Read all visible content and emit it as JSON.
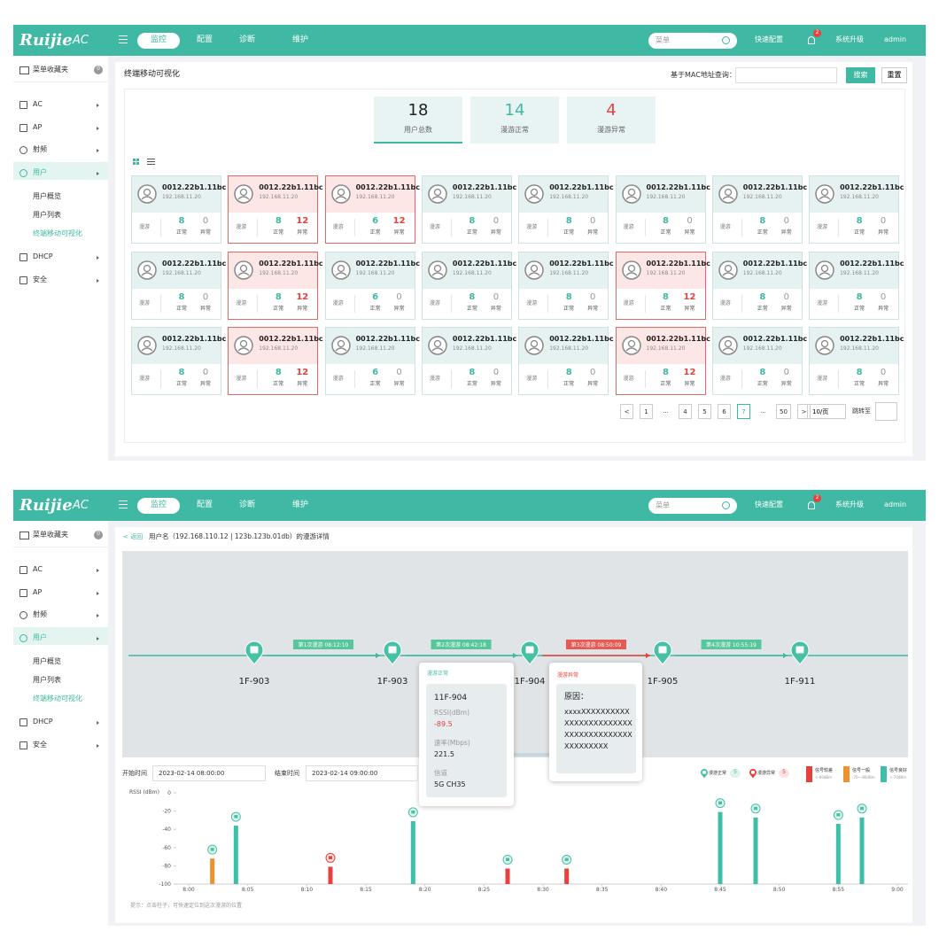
{
  "screen1": {
    "header": {
      "logo": "Ruijie",
      "logo_sub": "AC",
      "nav": [
        "监控",
        "配置",
        "诊断",
        "维护"
      ],
      "search": "菜单",
      "quick_config": "快速配置",
      "badge": 2,
      "upgrade": "系统升级",
      "user": "admin"
    },
    "sidebar": {
      "favorites": "菜单收藏夹",
      "favorites_count": 0,
      "items": [
        "AC",
        "AP",
        "射频",
        "用户",
        "用户概览",
        "用户列表",
        "终端移动可视化",
        "DHCP",
        "安全"
      ]
    },
    "content": {
      "title": "终端移动可视化",
      "query_label": "基于MAC地址查询：",
      "search_button": "搜索",
      "reset_button": "重置",
      "stats": [
        {
          "value": 18,
          "label": "用户总数"
        },
        {
          "value": 14,
          "label": "漫游正常"
        },
        {
          "value": 4,
          "label": "漫游异常"
        }
      ],
      "cards": [
        {
          "mac": "0012.22b1.11bc",
          "ip": "192.168.11.20",
          "type": "漫游",
          "normal": 8,
          "normal_label": "正常",
          "abnormal": 0,
          "abnormal_label": "异常"
        },
        {
          "mac": "0012.22b1.11bc",
          "ip": "192.168.11.20",
          "type": "漫游",
          "normal": 8,
          "normal_label": "正常",
          "abnormal": 12,
          "abnormal_label": "异常"
        },
        {
          "mac": "0012.22b1.11bc",
          "ip": "192.168.11.20",
          "type": "漫游",
          "normal": 6,
          "normal_label": "正常",
          "abnormal": 12,
          "abnormal_label": "异常"
        },
        {
          "mac": "0012.22b1.11bc",
          "ip": "192.168.11.20",
          "type": "漫游",
          "normal": 8,
          "normal_label": "正常",
          "abnormal": 0,
          "abnormal_label": "异常"
        },
        {
          "mac": "0012.22b1.11bc",
          "ip": "192.168.11.20",
          "type": "漫游",
          "normal": 8,
          "normal_label": "正常",
          "abnormal": 0,
          "abnormal_label": "异常"
        },
        {
          "mac": "0012.22b1.11bc",
          "ip": "192.168.11.20",
          "type": "漫游",
          "normal": 8,
          "normal_label": "正常",
          "abnormal": 0,
          "abnormal_label": "异常"
        },
        {
          "mac": "0012.22b1.11bc",
          "ip": "192.168.11.20",
          "type": "漫游",
          "normal": 8,
          "normal_label": "正常",
          "abnormal": 0,
          "abnormal_label": "异常"
        },
        {
          "mac": "0012.22b1.11bc",
          "ip": "192.168.11.20",
          "type": "漫游",
          "normal": 8,
          "normal_label": "正常",
          "abnormal": 0,
          "abnormal_label": "异常"
        },
        {
          "mac": "0012.22b1.11bc",
          "ip": "192.168.11.20",
          "type": "漫游",
          "normal": 8,
          "normal_label": "正常",
          "abnormal": 0,
          "abnormal_label": "异常"
        },
        {
          "mac": "0012.22b1.11bc",
          "ip": "192.168.11.20",
          "type": "漫游",
          "normal": 8,
          "normal_label": "正常",
          "abnormal": 12,
          "abnormal_label": "异常"
        },
        {
          "mac": "0012.22b1.11bc",
          "ip": "192.168.11.20",
          "type": "漫游",
          "normal": 6,
          "normal_label": "正常",
          "abnormal": 0,
          "abnormal_label": "异常"
        },
        {
          "mac": "0012.22b1.11bc",
          "ip": "192.168.11.20",
          "type": "漫游",
          "normal": 8,
          "normal_label": "正常",
          "abnormal": 0,
          "abnormal_label": "异常"
        },
        {
          "mac": "0012.22b1.11bc",
          "ip": "192.168.11.20",
          "type": "漫游",
          "normal": 8,
          "normal_label": "正常",
          "abnormal": 0,
          "abnormal_label": "异常"
        },
        {
          "mac": "0012.22b1.11bc",
          "ip": "192.168.11.20",
          "type": "漫游",
          "normal": 8,
          "normal_label": "正常",
          "abnormal": 12,
          "abnormal_label": "异常"
        },
        {
          "mac": "0012.22b1.11bc",
          "ip": "192.168.11.20",
          "type": "漫游",
          "normal": 8,
          "normal_label": "正常",
          "abnormal": 0,
          "abnormal_label": "异常"
        },
        {
          "mac": "0012.22b1.11bc",
          "ip": "192.168.11.20",
          "type": "漫游",
          "normal": 8,
          "normal_label": "正常",
          "abnormal": 0,
          "abnormal_label": "异常"
        },
        {
          "mac": "0012.22b1.11bc",
          "ip": "192.168.11.20",
          "type": "漫游",
          "normal": 8,
          "normal_label": "正常",
          "abnormal": 0,
          "abnormal_label": "异常"
        },
        {
          "mac": "0012.22b1.11bc",
          "ip": "192.168.11.20",
          "type": "漫游",
          "normal": 8,
          "normal_label": "正常",
          "abnormal": 12,
          "abnormal_label": "异常"
        },
        {
          "mac": "0012.22b1.11bc",
          "ip": "192.168.11.20",
          "type": "漫游",
          "normal": 6,
          "normal_label": "正常",
          "abnormal": 0,
          "abnormal_label": "异常"
        },
        {
          "mac": "0012.22b1.11bc",
          "ip": "192.168.11.20",
          "type": "漫游",
          "normal": 8,
          "normal_label": "正常",
          "abnormal": 0,
          "abnormal_label": "异常"
        },
        {
          "mac": "0012.22b1.11bc",
          "ip": "192.168.11.20",
          "type": "漫游",
          "normal": 8,
          "normal_label": "正常",
          "abnormal": 0,
          "abnormal_label": "异常"
        },
        {
          "mac": "0012.22b1.11bc",
          "ip": "192.168.11.20",
          "type": "漫游",
          "normal": 8,
          "normal_label": "正常",
          "abnormal": 12,
          "abnormal_label": "异常"
        },
        {
          "mac": "0012.22b1.11bc",
          "ip": "192.168.11.20",
          "type": "漫游",
          "normal": 8,
          "normal_label": "正常",
          "abnormal": 0,
          "abnormal_label": "异常"
        },
        {
          "mac": "0012.22b1.11bc",
          "ip": "192.168.11.20",
          "type": "漫游",
          "normal": 8,
          "normal_label": "正常",
          "abnormal": 0,
          "abnormal_label": "异常"
        }
      ],
      "pagination": {
        "prev": "<",
        "pages": [
          "1",
          "...",
          "4",
          "5",
          "6",
          "7",
          "...",
          "50"
        ],
        "current": "7",
        "next": ">",
        "page_size": "10/页",
        "jump": "跳转至"
      }
    }
  },
  "screen2": {
    "header": {
      "logo": "Ruijie",
      "logo_sub": "AC",
      "nav": [
        "监控",
        "配置",
        "诊断",
        "维护"
      ],
      "search": "菜单",
      "quick_config": "快速配置",
      "badge": 2,
      "upgrade": "系统升级",
      "user": "admin"
    },
    "sidebar": {
      "favorites": "菜单收藏夹",
      "favorites_count": 0,
      "items": [
        "AC",
        "AP",
        "射频",
        "用户",
        "用户概览",
        "用户列表",
        "终端移动可视化",
        "DHCP",
        "安全"
      ]
    },
    "content": {
      "back": "< 返回",
      "title": "用户名（192.168.110.12 | 123b.123b.01db）的漫游详情",
      "path": {
        "nodes": [
          "1F-903",
          "1F-903",
          "1F-904",
          "1F-905",
          "1F-911"
        ],
        "edges": [
          {
            "label": "第1次漫游 08:12:10",
            "status": "normal"
          },
          {
            "label": "第2次漫游 08:42:18",
            "status": "normal"
          },
          {
            "label": "第3次漫游 08:50:09",
            "status": "abnormal"
          },
          {
            "label": "第4次漫游 10:55:19",
            "status": "normal"
          }
        ]
      },
      "tooltip_normal": {
        "title": "漫游正常",
        "ap": "11F-904",
        "rssi_label": "RSSI(dBm)",
        "rssi": -89.5,
        "rate_label": "速率(Mbps)",
        "rate": 221.5,
        "channel_label": "信道",
        "channel": "5G CH35"
      },
      "tooltip_abnormal": {
        "title": "漫游异常",
        "reason_label": "原因：",
        "reason": "xxxxXXXXXXXXXXXXXXXXXXXXXXXXXXXXXXXXXXXXXXXXXXXXXXX"
      },
      "start_label": "开始时间",
      "start": "2023-02-14  08:00:00",
      "end_label": "结束时间",
      "end": "2023-02-14  09:00:00",
      "roam_legend": [
        {
          "label": "漫游正常",
          "count": 5,
          "status": "normal"
        },
        {
          "label": "漫游异常",
          "count": 5,
          "status": "abnormal"
        }
      ],
      "chart_data": {
        "type": "bar",
        "y_label": "RSSI (dBm)",
        "ylim": [
          -100,
          0
        ],
        "yticks": [
          0,
          -20,
          -40,
          -60,
          -80,
          -100
        ],
        "xlim": [
          "8:00",
          "9:00"
        ],
        "xticks": [
          "8:00",
          "8:05",
          "8:10",
          "8:15",
          "8:20",
          "8:25",
          "8:30",
          "8:35",
          "8:40",
          "8:45",
          "8:50",
          "8:55",
          "9:00"
        ],
        "series": [
          {
            "name": "信号较差",
            "range": "<-80dBm",
            "color": "#e8413c",
            "x": [
              "8:12",
              "8:27",
              "8:32"
            ],
            "values": [
              -81,
              -83,
              -83
            ],
            "pins": [
              "abnormal",
              "normal",
              "normal"
            ]
          },
          {
            "name": "信号一般",
            "range": "-70~-80dBm",
            "color": "#f0912e",
            "x": [
              "8:02"
            ],
            "values": [
              -72
            ],
            "pins": [
              "normal"
            ]
          },
          {
            "name": "信号良好",
            "range": ">-70dBm",
            "color": "#3dbfa8",
            "x": [
              "8:04",
              "8:19",
              "8:45",
              "8:48",
              "8:55",
              "8:57"
            ],
            "values": [
              -36,
              -31,
              -21,
              -27,
              -34,
              -27
            ],
            "pins": [
              "normal",
              "normal",
              "normal",
              "normal",
              "normal",
              "normal"
            ]
          }
        ]
      },
      "hint": "提示：点击柱子，可快速定位到这次漫游的位置"
    }
  }
}
